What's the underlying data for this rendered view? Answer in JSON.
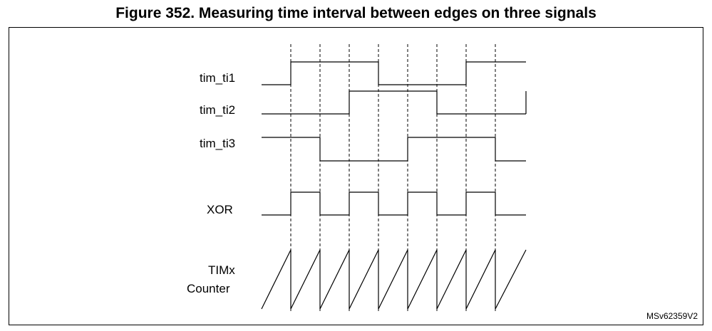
{
  "figure": {
    "title": "Figure 352. Measuring time interval between edges on three signals",
    "reference_code": "MSv62359V2"
  },
  "signals": [
    {
      "name": "tim_ti1",
      "initial_level": 0,
      "levels_after_edges": [
        1,
        1,
        1,
        0,
        0,
        0,
        1,
        1
      ]
    },
    {
      "name": "tim_ti2",
      "initial_level": 0,
      "levels_after_edges": [
        0,
        0,
        1,
        1,
        1,
        0,
        0,
        0
      ]
    },
    {
      "name": "tim_ti3",
      "initial_level": 1,
      "levels_after_edges": [
        1,
        0,
        0,
        0,
        1,
        1,
        1,
        0
      ]
    },
    {
      "name": "XOR",
      "initial_level": 0,
      "levels_after_edges": [
        1,
        0,
        1,
        0,
        1,
        0,
        1,
        0
      ]
    }
  ],
  "counter": {
    "label_line1": "TIMx",
    "label_line2": "Counter",
    "resets_at_each_edge": true
  },
  "edge_count": 8
}
